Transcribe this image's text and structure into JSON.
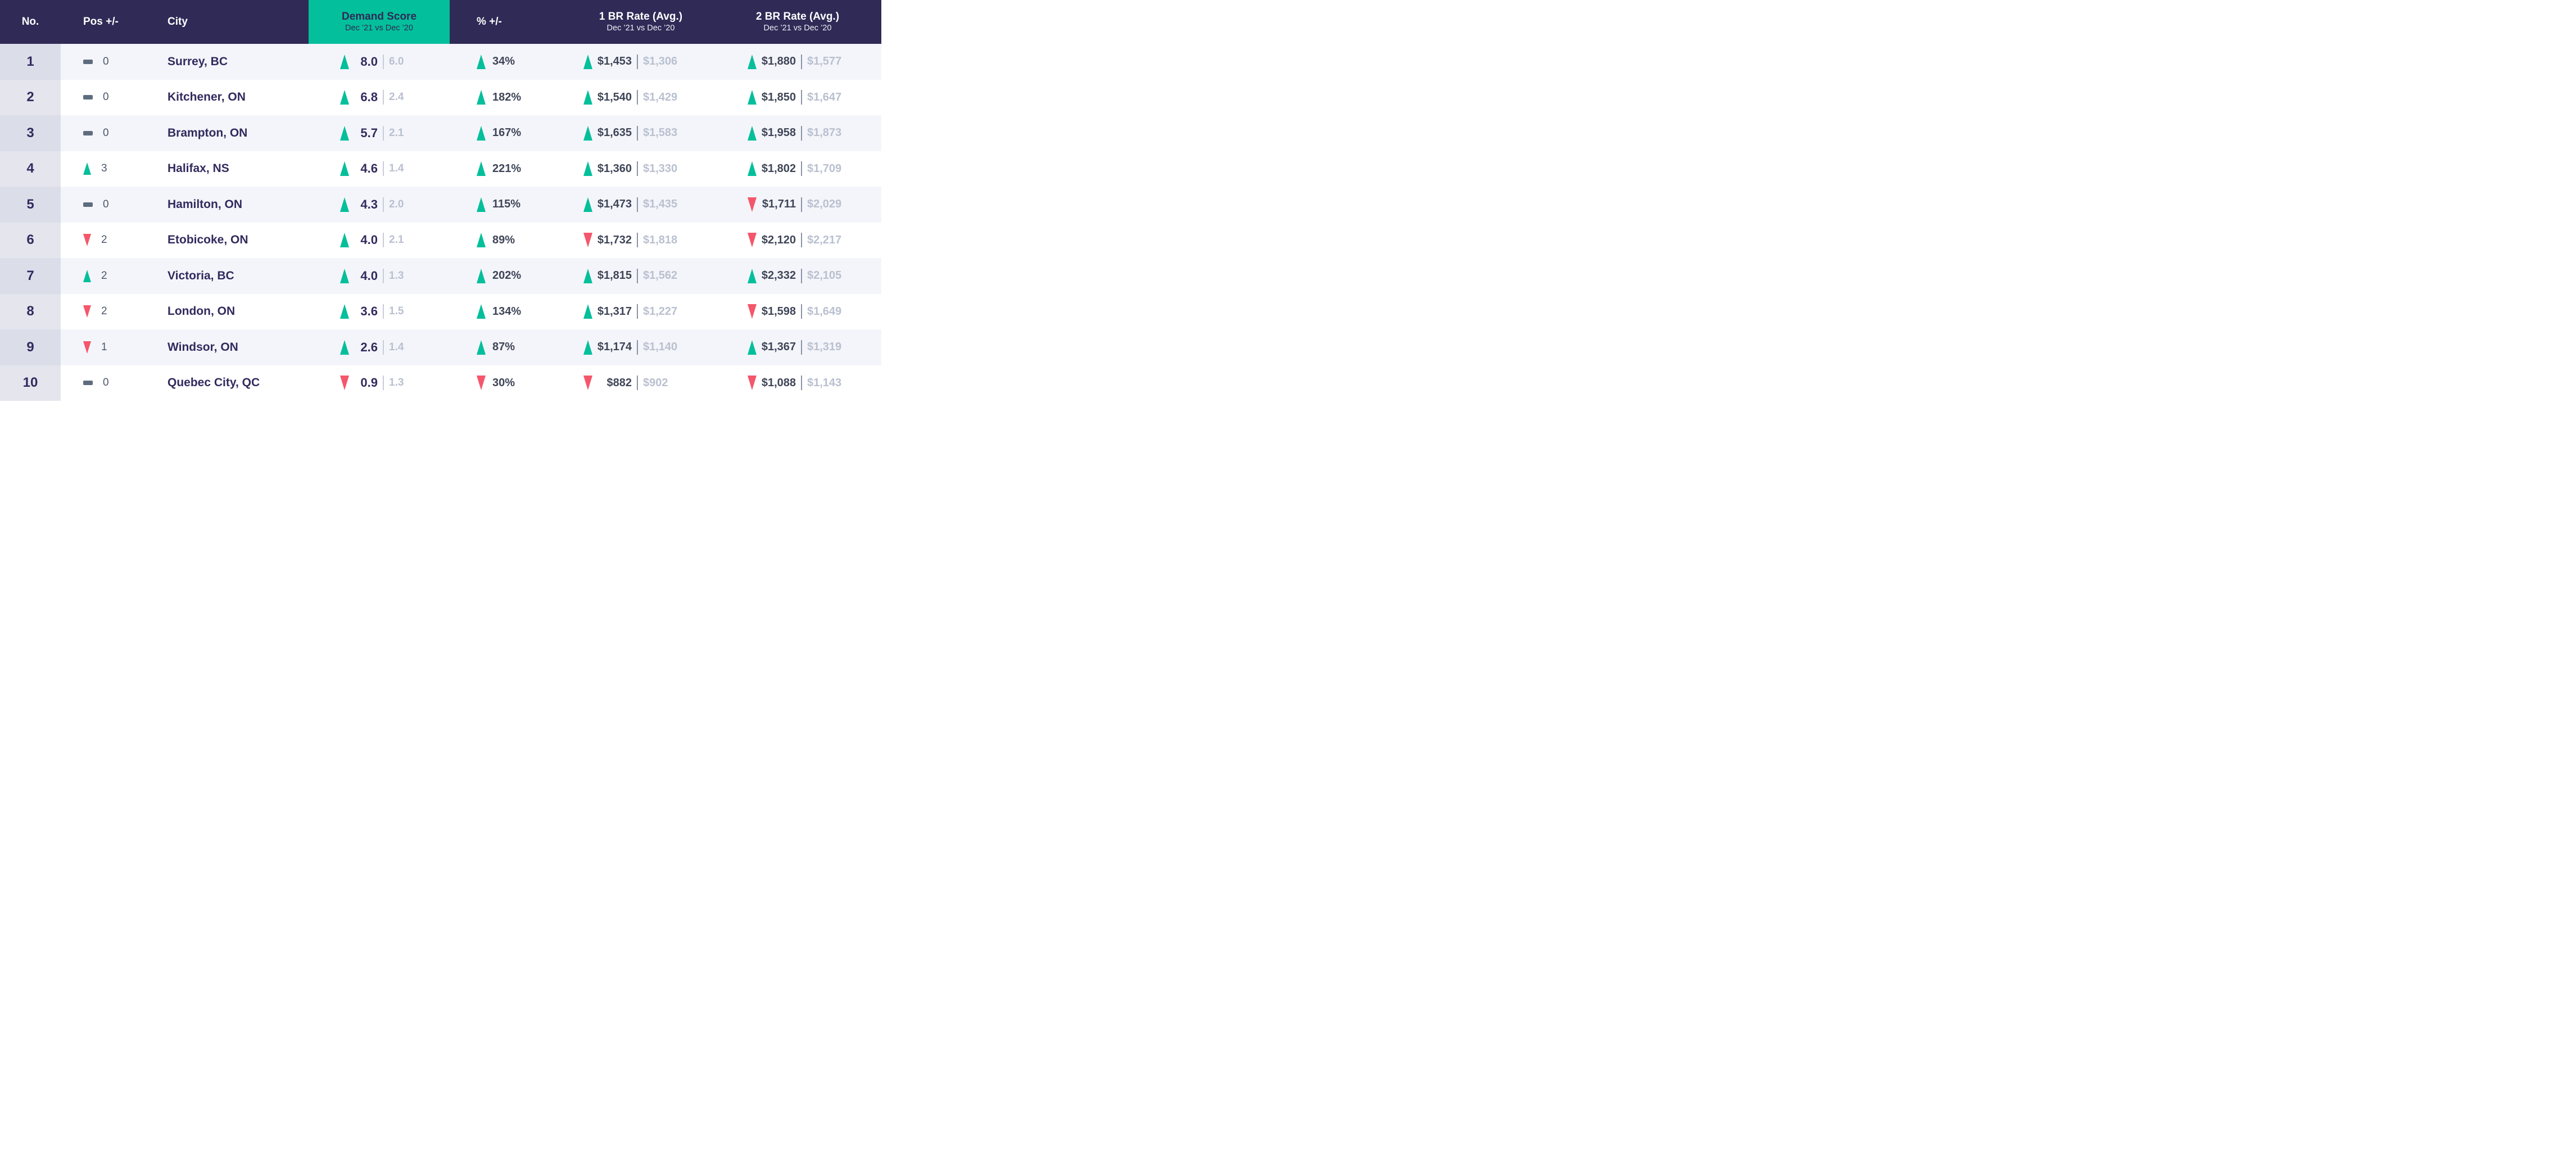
{
  "header": {
    "no": "No.",
    "pos": "Pos +/-",
    "city": "City",
    "score_title": "Demand Score",
    "score_subtitle": "Dec ’21 vs Dec ’20",
    "pct": "% +/-",
    "br1_title": "1 BR Rate (Avg.)",
    "br1_subtitle": "Dec ’21 vs Dec ’20",
    "br2_title": "2 BR Rate (Avg.)",
    "br2_subtitle": "Dec ’21 vs Dec ’20"
  },
  "colors": {
    "header_bg": "#2F2A56",
    "accent_teal": "#04BF9B",
    "down_red": "#F4566B",
    "primary_text": "#322A5E",
    "secondary_text": "#B9C0CF"
  },
  "rows": [
    {
      "no": "1",
      "pos_dir": "same",
      "pos_change": "0",
      "city": "Surrey, BC",
      "score_dir": "up",
      "score_now": "8.0",
      "score_prev": "6.0",
      "pct_dir": "up",
      "pct": "34%",
      "br1_dir": "up",
      "br1_now": "$1,453",
      "br1_prev": "$1,306",
      "br2_dir": "up",
      "br2_now": "$1,880",
      "br2_prev": "$1,577"
    },
    {
      "no": "2",
      "pos_dir": "same",
      "pos_change": "0",
      "city": "Kitchener, ON",
      "score_dir": "up",
      "score_now": "6.8",
      "score_prev": "2.4",
      "pct_dir": "up",
      "pct": "182%",
      "br1_dir": "up",
      "br1_now": "$1,540",
      "br1_prev": "$1,429",
      "br2_dir": "up",
      "br2_now": "$1,850",
      "br2_prev": "$1,647"
    },
    {
      "no": "3",
      "pos_dir": "same",
      "pos_change": "0",
      "city": "Brampton, ON",
      "score_dir": "up",
      "score_now": "5.7",
      "score_prev": "2.1",
      "pct_dir": "up",
      "pct": "167%",
      "br1_dir": "up",
      "br1_now": "$1,635",
      "br1_prev": "$1,583",
      "br2_dir": "up",
      "br2_now": "$1,958",
      "br2_prev": "$1,873"
    },
    {
      "no": "4",
      "pos_dir": "up",
      "pos_change": "3",
      "city": "Halifax, NS",
      "score_dir": "up",
      "score_now": "4.6",
      "score_prev": "1.4",
      "pct_dir": "up",
      "pct": "221%",
      "br1_dir": "up",
      "br1_now": "$1,360",
      "br1_prev": "$1,330",
      "br2_dir": "up",
      "br2_now": "$1,802",
      "br2_prev": "$1,709"
    },
    {
      "no": "5",
      "pos_dir": "same",
      "pos_change": "0",
      "city": "Hamilton, ON",
      "score_dir": "up",
      "score_now": "4.3",
      "score_prev": "2.0",
      "pct_dir": "up",
      "pct": "115%",
      "br1_dir": "up",
      "br1_now": "$1,473",
      "br1_prev": "$1,435",
      "br2_dir": "down",
      "br2_now": "$1,711",
      "br2_prev": "$2,029"
    },
    {
      "no": "6",
      "pos_dir": "down",
      "pos_change": "2",
      "city": "Etobicoke, ON",
      "score_dir": "up",
      "score_now": "4.0",
      "score_prev": "2.1",
      "pct_dir": "up",
      "pct": "89%",
      "br1_dir": "down",
      "br1_now": "$1,732",
      "br1_prev": "$1,818",
      "br2_dir": "down",
      "br2_now": "$2,120",
      "br2_prev": "$2,217"
    },
    {
      "no": "7",
      "pos_dir": "up",
      "pos_change": "2",
      "city": "Victoria, BC",
      "score_dir": "up",
      "score_now": "4.0",
      "score_prev": "1.3",
      "pct_dir": "up",
      "pct": "202%",
      "br1_dir": "up",
      "br1_now": "$1,815",
      "br1_prev": "$1,562",
      "br2_dir": "up",
      "br2_now": "$2,332",
      "br2_prev": "$2,105"
    },
    {
      "no": "8",
      "pos_dir": "down",
      "pos_change": "2",
      "city": "London, ON",
      "score_dir": "up",
      "score_now": "3.6",
      "score_prev": "1.5",
      "pct_dir": "up",
      "pct": "134%",
      "br1_dir": "up",
      "br1_now": "$1,317",
      "br1_prev": "$1,227",
      "br2_dir": "down",
      "br2_now": "$1,598",
      "br2_prev": "$1,649"
    },
    {
      "no": "9",
      "pos_dir": "down",
      "pos_change": "1",
      "city": "Windsor, ON",
      "score_dir": "up",
      "score_now": "2.6",
      "score_prev": "1.4",
      "pct_dir": "up",
      "pct": "87%",
      "br1_dir": "up",
      "br1_now": "$1,174",
      "br1_prev": "$1,140",
      "br2_dir": "up",
      "br2_now": "$1,367",
      "br2_prev": "$1,319"
    },
    {
      "no": "10",
      "pos_dir": "same",
      "pos_change": "0",
      "city": "Quebec City, QC",
      "score_dir": "down",
      "score_now": "0.9",
      "score_prev": "1.3",
      "pct_dir": "down",
      "pct": "30%",
      "br1_dir": "down",
      "br1_now": "$882",
      "br1_prev": "$902",
      "br2_dir": "down",
      "br2_now": "$1,088",
      "br2_prev": "$1,143"
    }
  ],
  "chart_data": {
    "type": "table",
    "title": "Rental Demand Score by City, Dec ’21 vs Dec ’20",
    "columns": [
      "No.",
      "Pos +/-",
      "City",
      "Demand Score Dec ’21",
      "Demand Score Dec ’20",
      "% +/-",
      "1 BR Rate (Avg.) Dec ’21",
      "1 BR Rate (Avg.) Dec ’20",
      "2 BR Rate (Avg.) Dec ’21",
      "2 BR Rate (Avg.) Dec ’20"
    ],
    "rows": [
      [
        1,
        0,
        "Surrey, BC",
        8.0,
        6.0,
        "+34%",
        1453,
        1306,
        1880,
        1577
      ],
      [
        2,
        0,
        "Kitchener, ON",
        6.8,
        2.4,
        "+182%",
        1540,
        1429,
        1850,
        1647
      ],
      [
        3,
        0,
        "Brampton, ON",
        5.7,
        2.1,
        "+167%",
        1635,
        1583,
        1958,
        1873
      ],
      [
        4,
        3,
        "Halifax, NS",
        4.6,
        1.4,
        "+221%",
        1360,
        1330,
        1802,
        1709
      ],
      [
        5,
        0,
        "Hamilton, ON",
        4.3,
        2.0,
        "+115%",
        1473,
        1435,
        1711,
        2029
      ],
      [
        6,
        -2,
        "Etobicoke, ON",
        4.0,
        2.1,
        "+89%",
        1732,
        1818,
        2120,
        2217
      ],
      [
        7,
        2,
        "Victoria, BC",
        4.0,
        1.3,
        "+202%",
        1815,
        1562,
        2332,
        2105
      ],
      [
        8,
        -2,
        "London, ON",
        3.6,
        1.5,
        "+134%",
        1317,
        1227,
        1598,
        1649
      ],
      [
        9,
        -1,
        "Windsor, ON",
        2.6,
        1.4,
        "+87%",
        1174,
        1140,
        1367,
        1319
      ],
      [
        10,
        0,
        "Quebec City, QC",
        0.9,
        1.3,
        "-30%",
        882,
        902,
        1088,
        1143
      ]
    ]
  }
}
